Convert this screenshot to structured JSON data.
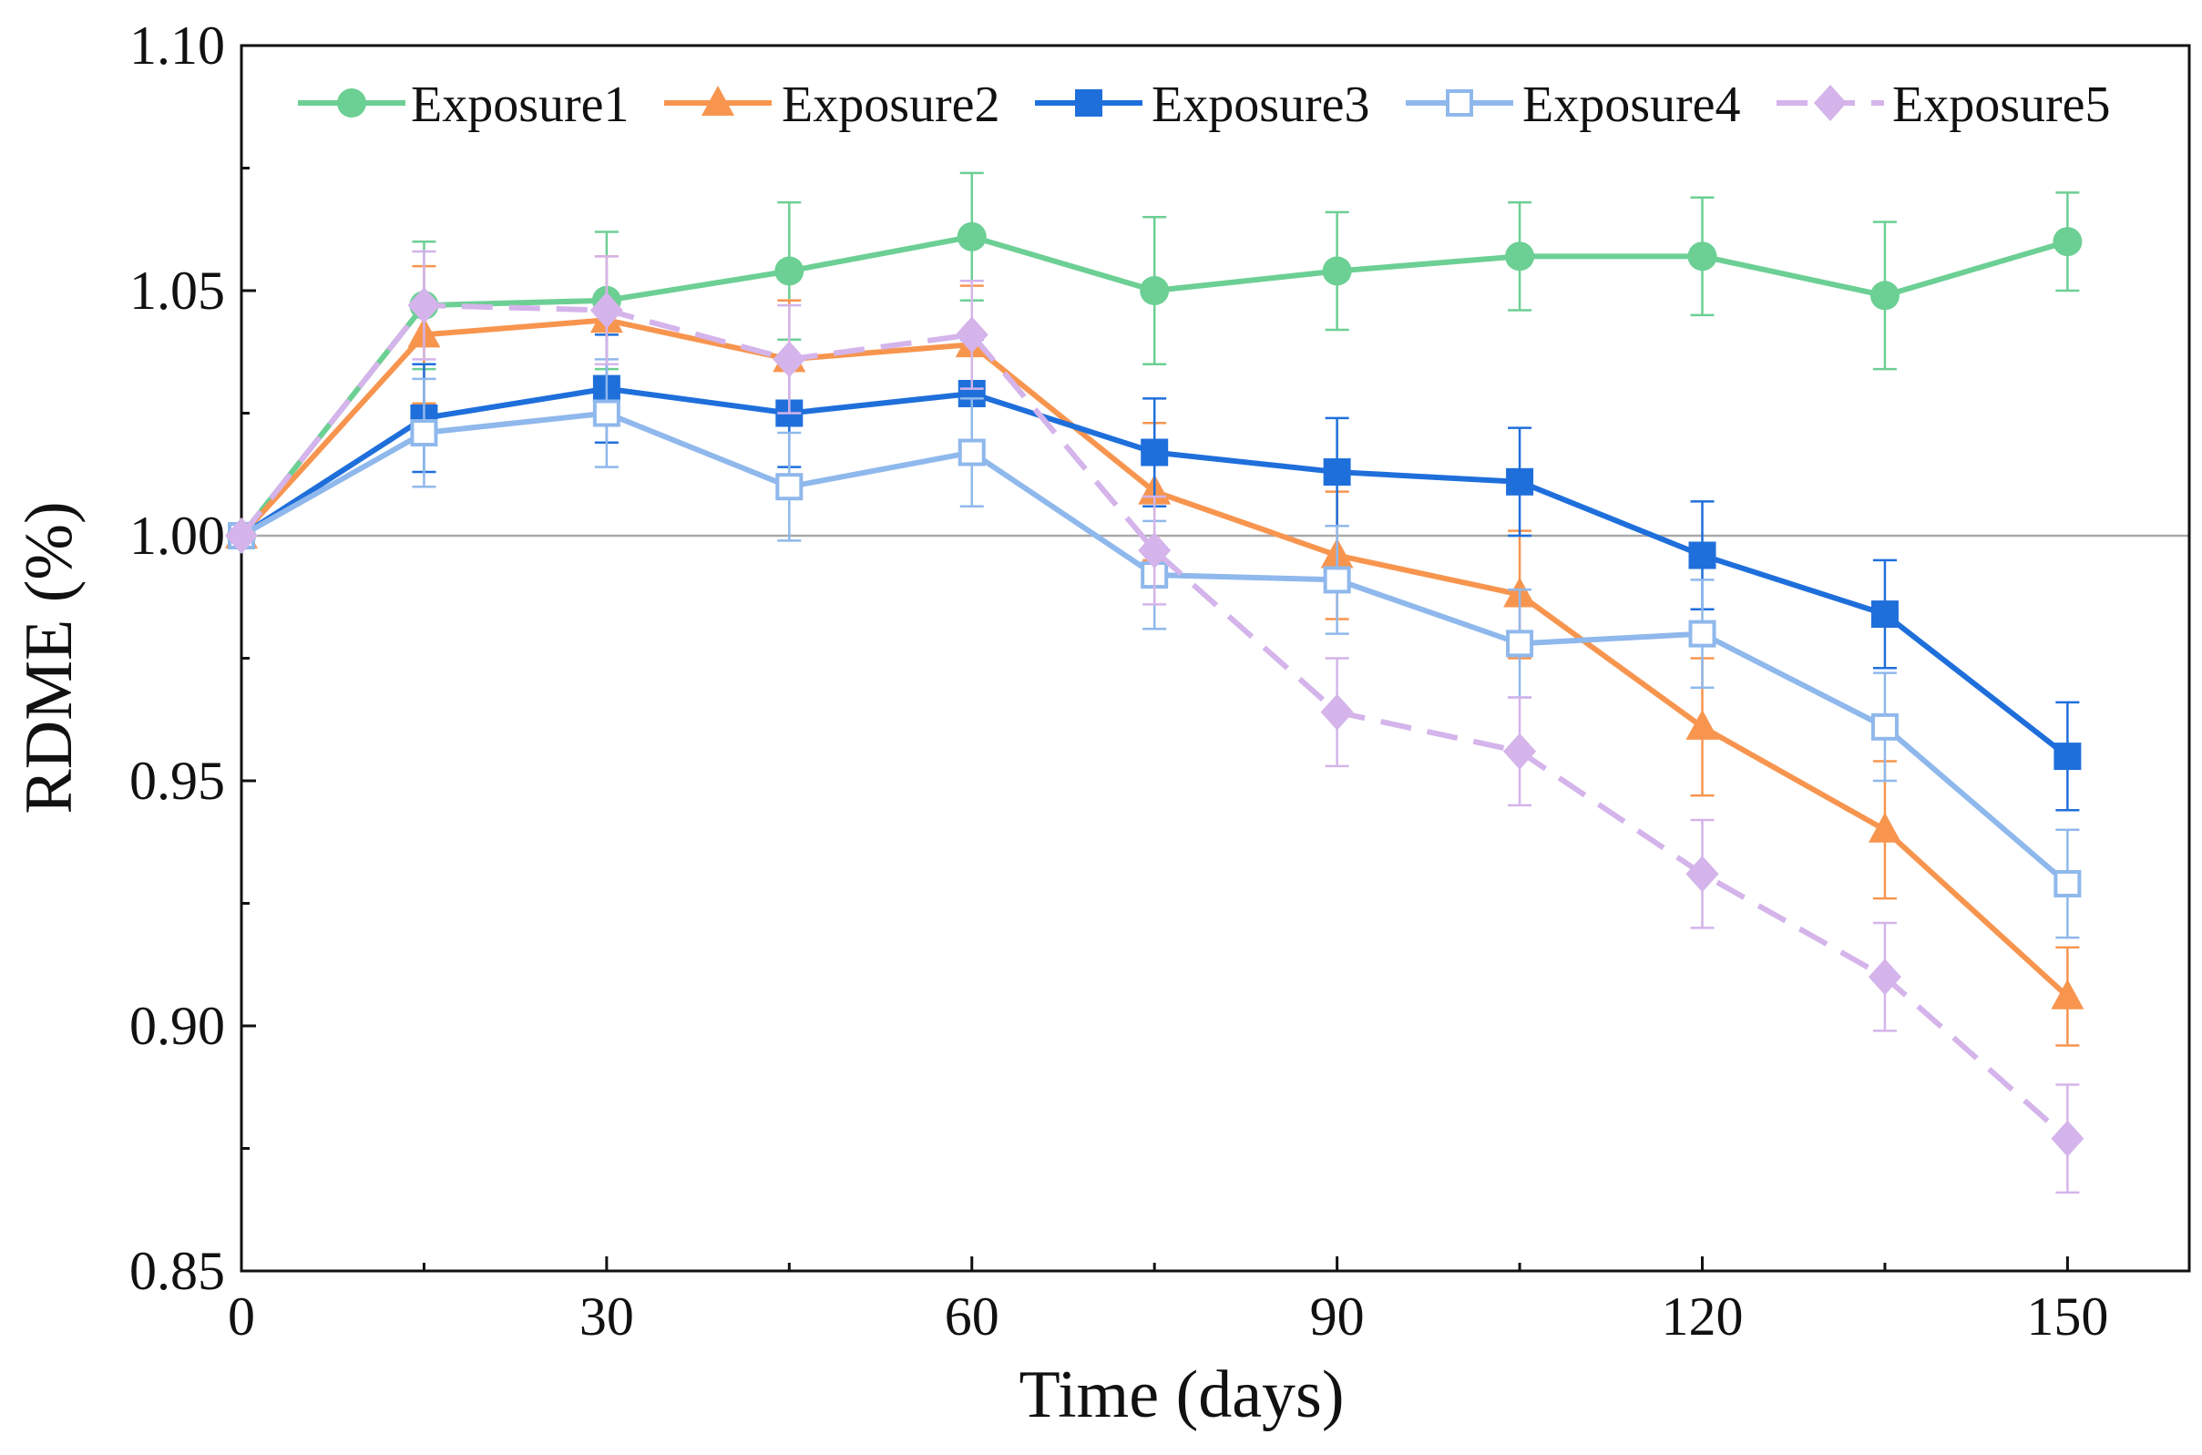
{
  "chart_data": {
    "type": "line",
    "title": "",
    "xlabel": "Time (days)",
    "ylabel": "RDME (%)",
    "xlim": [
      0,
      160
    ],
    "ylim": [
      0.85,
      1.1
    ],
    "x_ticks": [
      0,
      30,
      60,
      90,
      120,
      150
    ],
    "x_tick_labels": [
      "0",
      "30",
      "60",
      "90",
      "120",
      "150"
    ],
    "y_ticks": [
      0.85,
      0.9,
      0.95,
      1.0,
      1.05,
      1.1
    ],
    "y_tick_labels": [
      "0.85",
      "0.90",
      "0.95",
      "1.00",
      "1.05",
      "1.10"
    ],
    "reference_line": 1.0,
    "legend_position": "top",
    "x": [
      0,
      15,
      30,
      45,
      60,
      75,
      90,
      105,
      120,
      135,
      150
    ],
    "series": [
      {
        "name": "Exposure1",
        "color": "#6ccf94",
        "marker": "circle",
        "dashed": false,
        "values": [
          1.0,
          1.047,
          1.048,
          1.054,
          1.061,
          1.05,
          1.054,
          1.057,
          1.057,
          1.049,
          1.06
        ],
        "errors": [
          0.0,
          0.013,
          0.014,
          0.014,
          0.013,
          0.015,
          0.012,
          0.011,
          0.012,
          0.015,
          0.01
        ]
      },
      {
        "name": "Exposure2",
        "color": "#f7954f",
        "marker": "triangle",
        "dashed": false,
        "values": [
          1.0,
          1.041,
          1.044,
          1.036,
          1.039,
          1.009,
          0.996,
          0.988,
          0.961,
          0.94,
          0.906
        ],
        "errors": [
          0.0,
          0.014,
          0.013,
          0.012,
          0.012,
          0.014,
          0.013,
          0.013,
          0.014,
          0.014,
          0.01
        ]
      },
      {
        "name": "Exposure3",
        "color": "#1f6fdb",
        "marker": "square",
        "dashed": false,
        "values": [
          1.0,
          1.024,
          1.03,
          1.025,
          1.029,
          1.017,
          1.013,
          1.011,
          0.996,
          0.984,
          0.955
        ],
        "errors": [
          0.0,
          0.011,
          0.011,
          0.011,
          0.011,
          0.011,
          0.011,
          0.011,
          0.011,
          0.011,
          0.011
        ]
      },
      {
        "name": "Exposure4",
        "color": "#8fb8ec",
        "marker": "square-open",
        "dashed": false,
        "values": [
          1.0,
          1.021,
          1.025,
          1.01,
          1.017,
          0.992,
          0.991,
          0.978,
          0.98,
          0.961,
          0.929
        ],
        "errors": [
          0.0,
          0.011,
          0.011,
          0.011,
          0.011,
          0.011,
          0.011,
          0.011,
          0.011,
          0.011,
          0.011
        ]
      },
      {
        "name": "Exposure5",
        "color": "#d4b4ea",
        "marker": "diamond",
        "dashed": true,
        "values": [
          1.0,
          1.047,
          1.046,
          1.036,
          1.041,
          0.997,
          0.964,
          0.956,
          0.931,
          0.91,
          0.877
        ],
        "errors": [
          0.0,
          0.011,
          0.011,
          0.011,
          0.011,
          0.011,
          0.011,
          0.011,
          0.011,
          0.011,
          0.011
        ]
      }
    ]
  }
}
